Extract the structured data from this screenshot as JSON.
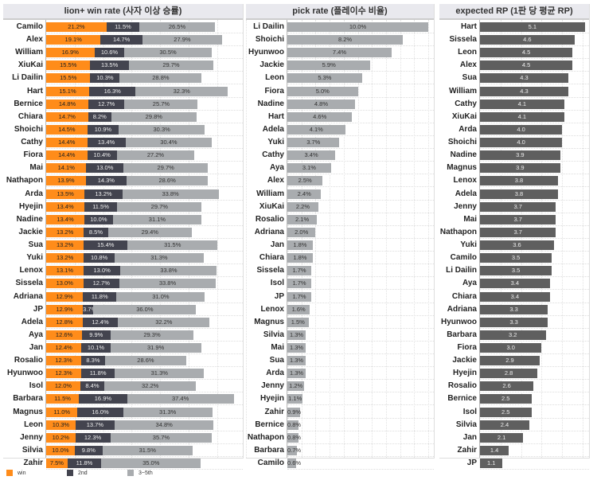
{
  "colors": {
    "win": "#ff8c1a",
    "second": "#43444f",
    "third": "#a9acaf",
    "pick": "#a9acaf",
    "rp": "#5f5f5f"
  },
  "chart_data": [
    {
      "type": "bar",
      "stacked": true,
      "orientation": "horizontal",
      "title": "lion+ win rate (사자 이상 승률)",
      "categories": [
        "Camilo",
        "Alex",
        "William",
        "XiuKai",
        "Li Dailin",
        "Hart",
        "Bernice",
        "Chiara",
        "Shoichi",
        "Cathy",
        "Fiora",
        "Mai",
        "Nathapon",
        "Arda",
        "Hyejin",
        "Nadine",
        "Jackie",
        "Sua",
        "Yuki",
        "Lenox",
        "Sissela",
        "Adriana",
        "JP",
        "Adela",
        "Aya",
        "Jan",
        "Rosalio",
        "Hyunwoo",
        "Isol",
        "Barbara",
        "Magnus",
        "Leon",
        "Jenny",
        "Silvia",
        "Zahir"
      ],
      "series": [
        {
          "name": "win",
          "values": [
            21.2,
            19.1,
            16.9,
            15.5,
            15.5,
            15.1,
            14.8,
            14.7,
            14.5,
            14.4,
            14.4,
            14.1,
            13.9,
            13.5,
            13.4,
            13.4,
            13.2,
            13.2,
            13.2,
            13.1,
            13.0,
            12.9,
            12.9,
            12.8,
            12.6,
            12.4,
            12.3,
            12.3,
            12.0,
            11.5,
            11.0,
            10.3,
            10.2,
            10.0,
            7.5
          ]
        },
        {
          "name": "2nd",
          "values": [
            11.5,
            14.7,
            10.6,
            13.5,
            10.3,
            16.3,
            12.7,
            8.2,
            10.9,
            13.4,
            10.4,
            13.0,
            14.3,
            13.2,
            11.5,
            10.0,
            8.5,
            15.4,
            10.8,
            13.0,
            12.7,
            11.8,
            3.7,
            12.4,
            9.9,
            10.1,
            8.3,
            11.8,
            8.4,
            16.9,
            16.0,
            13.7,
            12.3,
            9.8,
            11.8
          ]
        },
        {
          "name": "3~5th",
          "values": [
            26.5,
            27.9,
            30.5,
            29.7,
            28.8,
            32.3,
            25.7,
            29.8,
            30.3,
            30.4,
            27.2,
            29.7,
            28.6,
            33.8,
            29.7,
            31.1,
            29.4,
            31.5,
            31.3,
            33.8,
            33.8,
            31.0,
            36.0,
            32.2,
            29.3,
            31.9,
            28.6,
            31.3,
            32.2,
            37.4,
            31.3,
            34.8,
            35.7,
            31.5,
            35.0
          ]
        }
      ],
      "unit": "%",
      "legend": "bottom-left"
    },
    {
      "type": "bar",
      "orientation": "horizontal",
      "title": "pick rate (플레이수 비율)",
      "categories": [
        "Li Dailin",
        "Shoichi",
        "Hyunwoo",
        "Jackie",
        "Leon",
        "Fiora",
        "Nadine",
        "Hart",
        "Adela",
        "Yuki",
        "Cathy",
        "Aya",
        "Alex",
        "William",
        "XiuKai",
        "Rosalio",
        "Adriana",
        "Jan",
        "Chiara",
        "Sissela",
        "Isol",
        "JP",
        "Lenox",
        "Magnus",
        "Silvia",
        "Mai",
        "Sua",
        "Arda",
        "Jenny",
        "Hyejin",
        "Zahir",
        "Bernice",
        "Nathapon",
        "Barbara",
        "Camilo"
      ],
      "values": [
        10.0,
        8.2,
        7.4,
        5.9,
        5.3,
        5.0,
        4.8,
        4.6,
        4.1,
        3.7,
        3.4,
        3.1,
        2.5,
        2.4,
        2.2,
        2.1,
        2.0,
        1.8,
        1.8,
        1.7,
        1.7,
        1.7,
        1.6,
        1.5,
        1.3,
        1.3,
        1.3,
        1.3,
        1.2,
        1.1,
        0.9,
        0.8,
        0.8,
        0.7,
        0.6
      ],
      "unit": "%",
      "xlim": [
        0,
        10
      ]
    },
    {
      "type": "bar",
      "orientation": "horizontal",
      "title": "expected RP (1판 당 평균 RP)",
      "categories": [
        "Hart",
        "Sissela",
        "Leon",
        "Alex",
        "Sua",
        "William",
        "Cathy",
        "XiuKai",
        "Arda",
        "Shoichi",
        "Nadine",
        "Magnus",
        "Lenox",
        "Adela",
        "Jenny",
        "Mai",
        "Nathapon",
        "Yuki",
        "Camilo",
        "Li Dailin",
        "Aya",
        "Chiara",
        "Adriana",
        "Hyunwoo",
        "Barbara",
        "Fiora",
        "Jackie",
        "Hyejin",
        "Rosalio",
        "Bernice",
        "Isol",
        "Silvia",
        "Jan",
        "Zahir",
        "JP"
      ],
      "values": [
        5.1,
        4.6,
        4.5,
        4.5,
        4.3,
        4.3,
        4.1,
        4.1,
        4.0,
        4.0,
        3.9,
        3.9,
        3.8,
        3.8,
        3.7,
        3.7,
        3.7,
        3.6,
        3.5,
        3.5,
        3.4,
        3.4,
        3.3,
        3.3,
        3.2,
        3.0,
        2.9,
        2.8,
        2.6,
        2.5,
        2.5,
        2.4,
        2.1,
        1.4,
        1.1
      ],
      "unit": "",
      "xlim": [
        0,
        5.1
      ]
    }
  ]
}
